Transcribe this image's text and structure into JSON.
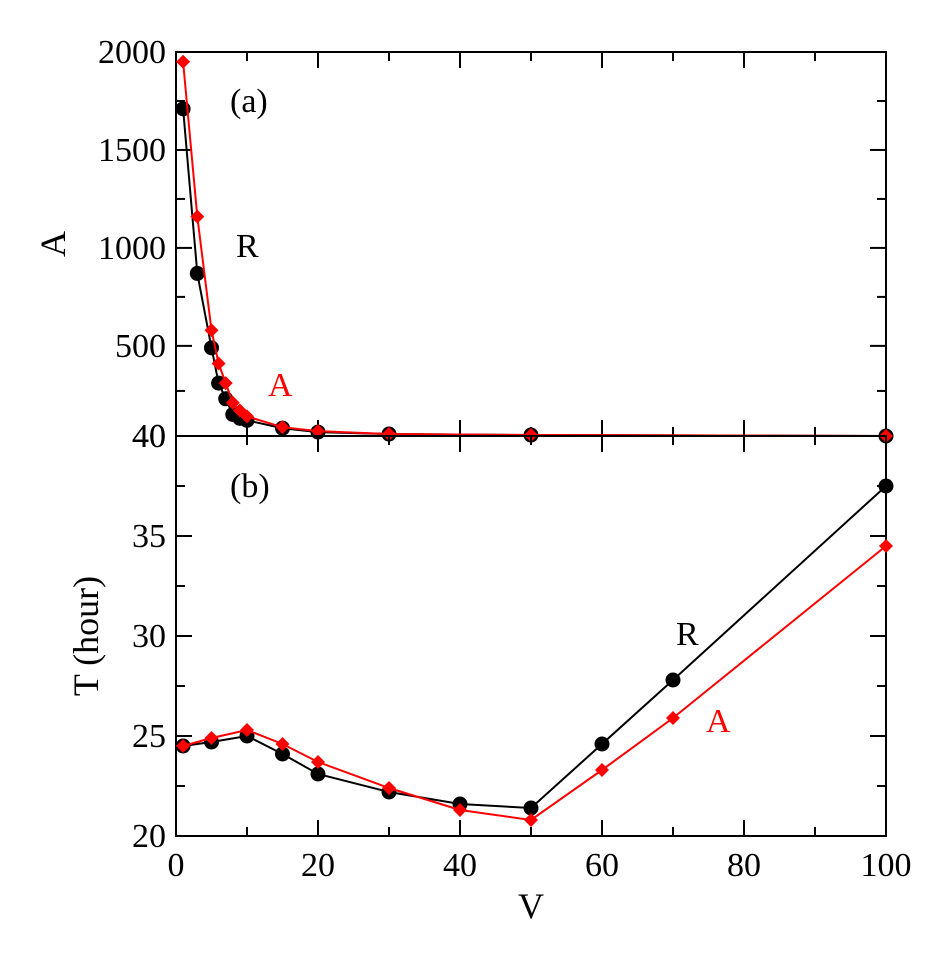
{
  "chart_data": [
    {
      "panel": "(a)",
      "type": "line",
      "xlabel": "V",
      "ylabel": "A",
      "xlim": [
        0,
        100
      ],
      "ylim": [
        40,
        2000
      ],
      "y_ticks": [
        "40",
        "500",
        "1000",
        "1500",
        "2000"
      ],
      "series": [
        {
          "name": "R",
          "color": "#000000",
          "marker": "circle",
          "x": [
            1,
            3,
            5,
            6,
            7,
            8,
            9,
            10,
            15,
            20,
            30,
            50,
            100
          ],
          "y": [
            1710,
            870,
            490,
            310,
            230,
            150,
            130,
            120,
            80,
            60,
            50,
            45,
            40
          ]
        },
        {
          "name": "A",
          "color": "#ff0000",
          "marker": "diamond",
          "x": [
            1,
            3,
            5,
            6,
            7,
            8,
            9,
            10,
            15,
            20,
            30,
            50,
            100
          ],
          "y": [
            1950,
            1160,
            580,
            410,
            310,
            210,
            170,
            140,
            85,
            65,
            50,
            45,
            40
          ]
        }
      ]
    },
    {
      "panel": "(b)",
      "type": "line",
      "xlabel": "V",
      "ylabel": "T (hour)",
      "xlim": [
        0,
        100
      ],
      "ylim": [
        20,
        40
      ],
      "x_ticks": [
        "0",
        "20",
        "40",
        "60",
        "80",
        "100"
      ],
      "y_ticks": [
        "20",
        "25",
        "30",
        "35",
        "40"
      ],
      "series": [
        {
          "name": "R",
          "color": "#000000",
          "marker": "circle",
          "x": [
            1,
            5,
            10,
            15,
            20,
            30,
            40,
            50,
            60,
            70,
            100
          ],
          "y": [
            24.5,
            24.7,
            25.0,
            24.1,
            23.1,
            22.2,
            21.6,
            21.4,
            24.6,
            27.8,
            37.5
          ]
        },
        {
          "name": "A",
          "color": "#ff0000",
          "marker": "diamond",
          "x": [
            1,
            5,
            10,
            15,
            20,
            30,
            40,
            50,
            60,
            70,
            100
          ],
          "y": [
            24.5,
            24.9,
            25.3,
            24.6,
            23.7,
            22.4,
            21.3,
            20.8,
            23.3,
            25.9,
            34.5
          ]
        }
      ]
    }
  ]
}
